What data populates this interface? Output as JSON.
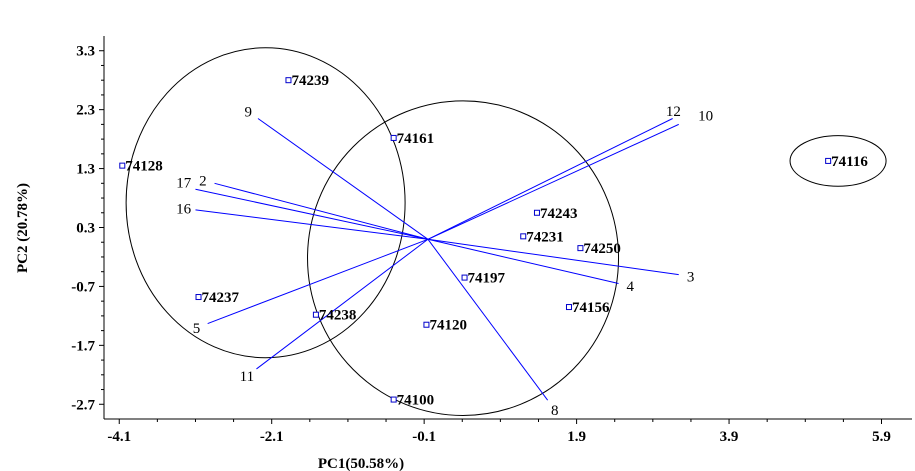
{
  "chart_data": {
    "type": "scatter",
    "subtype": "pca-biplot",
    "title": "",
    "xlabel": "PC1(50.58%)",
    "ylabel": "PC2 (20.78%)",
    "xlim": [
      -4.3,
      6.3
    ],
    "ylim": [
      -2.95,
      3.55
    ],
    "xticks": [
      "-4.1",
      "-2.1",
      "-0.1",
      "1.9",
      "3.9",
      "5.9"
    ],
    "yticks": [
      "3.3",
      "2.3",
      "1.3",
      "0.3",
      "-0.7",
      "-1.7",
      "-2.7"
    ],
    "grid": false,
    "colors": {
      "points": "#0000cc",
      "vectors": "#0000ff",
      "ellipses": "#000000"
    },
    "points": [
      {
        "label": "74239",
        "x": -1.88,
        "y": 2.8
      },
      {
        "label": "74161",
        "x": -0.5,
        "y": 1.82
      },
      {
        "label": "74128",
        "x": -4.06,
        "y": 1.35
      },
      {
        "label": "74116",
        "x": 5.2,
        "y": 1.43
      },
      {
        "label": "74243",
        "x": 1.38,
        "y": 0.55
      },
      {
        "label": "74231",
        "x": 1.2,
        "y": 0.15
      },
      {
        "label": "74250",
        "x": 1.95,
        "y": -0.05
      },
      {
        "label": "74197",
        "x": 0.43,
        "y": -0.55
      },
      {
        "label": "74237",
        "x": -3.06,
        "y": -0.88
      },
      {
        "label": "74238",
        "x": -1.52,
        "y": -1.18
      },
      {
        "label": "74156",
        "x": 1.8,
        "y": -1.05
      },
      {
        "label": "74120",
        "x": -0.07,
        "y": -1.35
      },
      {
        "label": "74100",
        "x": -0.5,
        "y": -2.62
      }
    ],
    "origin": {
      "x": -0.05,
      "y": 0.1
    },
    "vectors": [
      {
        "label": "12",
        "x": 3.16,
        "y": 2.15
      },
      {
        "label": "10",
        "x": 3.24,
        "y": 2.05
      },
      {
        "label": "9",
        "x": -2.28,
        "y": 2.15
      },
      {
        "label": "2",
        "x": -2.85,
        "y": 1.05
      },
      {
        "label": "17",
        "x": -3.1,
        "y": 0.95
      },
      {
        "label": "16",
        "x": -3.1,
        "y": 0.6
      },
      {
        "label": "3",
        "x": 3.24,
        "y": -0.5
      },
      {
        "label": "4",
        "x": 2.45,
        "y": -0.65
      },
      {
        "label": "5",
        "x": -2.94,
        "y": -1.33
      },
      {
        "label": "11",
        "x": -2.3,
        "y": -2.1
      },
      {
        "label": "8",
        "x": 1.52,
        "y": -2.63
      }
    ],
    "ellipses": [
      {
        "cx": -2.18,
        "cy": 0.72,
        "rx": 1.83,
        "ry": 2.63
      },
      {
        "cx": 0.41,
        "cy": -0.22,
        "rx": 2.04,
        "ry": 2.67
      },
      {
        "cx": 5.33,
        "cy": 1.43,
        "rx": 0.63,
        "ry": 0.43
      }
    ]
  }
}
